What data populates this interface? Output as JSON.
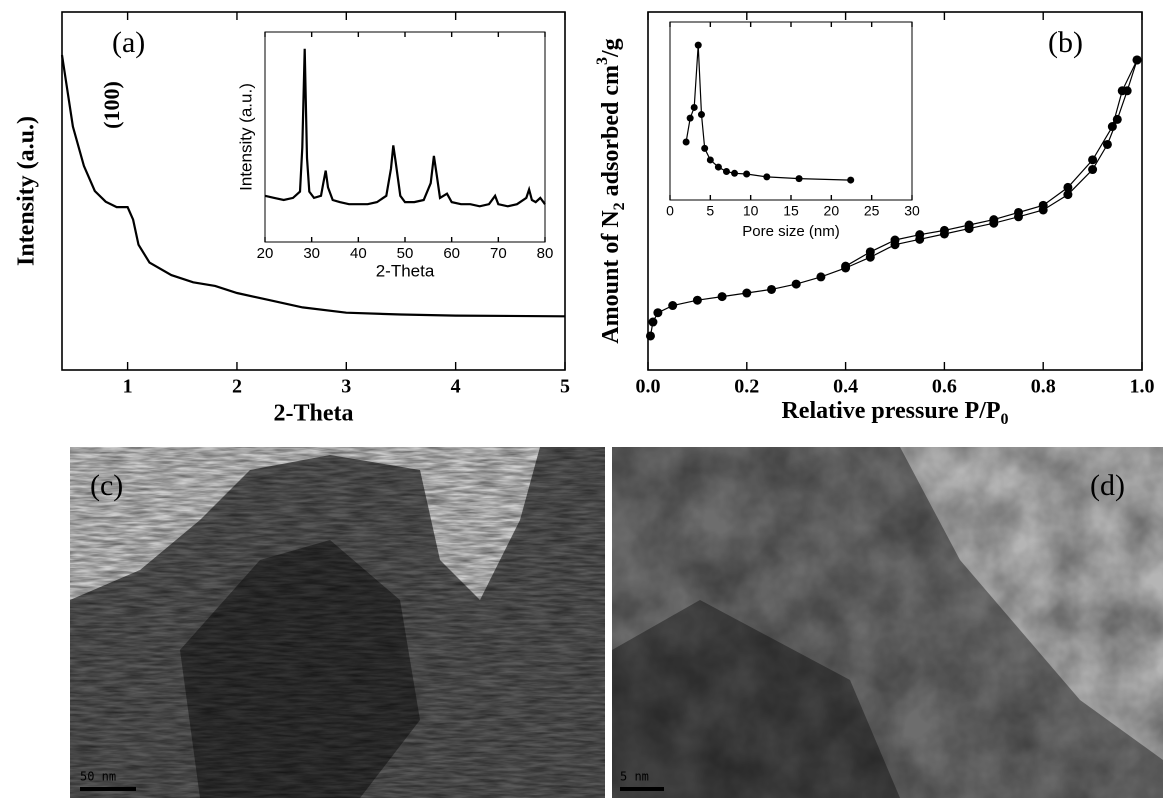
{
  "chart_data": [
    {
      "type": "line",
      "label": "(a)",
      "annotation": "(100)",
      "xlabel": "2-Theta",
      "ylabel": "Intensity (a.u.)",
      "xlim": [
        0.4,
        5
      ],
      "xticks": [
        1,
        2,
        3,
        4,
        5
      ],
      "ylim": [
        0,
        100
      ],
      "x": [
        0.4,
        0.5,
        0.6,
        0.7,
        0.8,
        0.9,
        1.0,
        1.05,
        1.1,
        1.2,
        1.4,
        1.6,
        1.8,
        2.0,
        2.3,
        2.6,
        3.0,
        3.5,
        4.0,
        5.0
      ],
      "series": [
        {
          "color": "#000000",
          "values": [
            88,
            68,
            57,
            50,
            47,
            45.5,
            45.5,
            42,
            35,
            30,
            26.5,
            24.5,
            23.5,
            21.5,
            19.5,
            17.5,
            16,
            15.5,
            15.2,
            15
          ]
        }
      ]
    },
    {
      "type": "line",
      "xlabel": "2-Theta",
      "ylabel": "Intensity (a.u.)",
      "xlim": [
        20,
        80
      ],
      "xticks": [
        20,
        30,
        40,
        50,
        60,
        70,
        80
      ],
      "ylim": [
        0,
        100
      ],
      "x": [
        20,
        22,
        24,
        26,
        27.5,
        28,
        28.5,
        29,
        29.5,
        30.5,
        32,
        32.5,
        33,
        33.5,
        34.5,
        36,
        38,
        40,
        42,
        44,
        46,
        47,
        47.5,
        48,
        49,
        50,
        52,
        54,
        55.5,
        56.2,
        56.8,
        57.5,
        59,
        60,
        62,
        64,
        66,
        68,
        69.3,
        70,
        72,
        74,
        76,
        76.6,
        77.2,
        78,
        79,
        80
      ],
      "series": [
        {
          "color": "#000000",
          "values": [
            22,
            21,
            20,
            21,
            24,
            45,
            92,
            40,
            24,
            21,
            22,
            28,
            34,
            26,
            20,
            19,
            18,
            18,
            18,
            19,
            22,
            35,
            46,
            38,
            22,
            19,
            19,
            20,
            28,
            41,
            32,
            21,
            23,
            19,
            18,
            18,
            17,
            18,
            22,
            18,
            17,
            18,
            21,
            25,
            20,
            19,
            21,
            18
          ]
        }
      ]
    },
    {
      "type": "line",
      "label": "(b)",
      "xlabel": [
        "Relative pressure P/P",
        "0"
      ],
      "ylabel": [
        "Amount of N",
        "2",
        " adsorbed cm",
        "3",
        "/g"
      ],
      "xlim": [
        0,
        1
      ],
      "xticks": [
        {
          "value": 0,
          "label": "0.0"
        },
        0.2,
        0.4,
        0.6,
        0.8,
        {
          "value": 1,
          "label": "1.0"
        }
      ],
      "ylim": [
        0,
        100
      ],
      "series": [
        {
          "color": "#000000",
          "marker": "circle",
          "x": [
            0.005,
            0.01,
            0.02,
            0.05,
            0.1,
            0.15,
            0.2,
            0.25,
            0.3,
            0.35,
            0.4,
            0.45,
            0.5,
            0.55,
            0.6,
            0.65,
            0.7,
            0.75,
            0.8,
            0.85,
            0.9,
            0.93,
            0.95,
            0.97,
            0.99
          ],
          "values": [
            9.5,
            13.4,
            16,
            18,
            19.5,
            20.5,
            21.5,
            22.5,
            24,
            26,
            28.5,
            31.5,
            35,
            36.5,
            38,
            39.5,
            41,
            42.8,
            44.7,
            49,
            56,
            63,
            70,
            78,
            86.6
          ]
        },
        {
          "color": "#000000",
          "marker": "circle",
          "x": [
            0.99,
            0.96,
            0.94,
            0.9,
            0.85,
            0.8,
            0.75,
            0.7,
            0.65,
            0.6,
            0.55,
            0.5,
            0.45,
            0.4
          ],
          "values": [
            86.6,
            78,
            68,
            58.7,
            51,
            46,
            44,
            42,
            40.5,
            39,
            37.8,
            36.3,
            33,
            29
          ]
        }
      ]
    },
    {
      "type": "line",
      "xlabel": "Pore size (nm)",
      "xlim": [
        0,
        30
      ],
      "xticks": [
        0,
        5,
        10,
        15,
        20,
        25,
        30
      ],
      "ylim": [
        0,
        100
      ],
      "x": [
        2,
        2.5,
        3,
        3.5,
        3.9,
        4.3,
        5,
        6,
        7,
        8,
        9.5,
        12,
        16,
        22.4
      ],
      "series": [
        {
          "color": "#000000",
          "marker": "circle",
          "values": [
            32.6,
            46,
            52,
            87,
            48,
            29,
            22.5,
            18.5,
            16,
            15,
            14.6,
            13,
            12,
            11.2
          ]
        }
      ]
    }
  ],
  "images": [
    {
      "label": "(c)",
      "scale_bar": "50 nm"
    },
    {
      "label": "(d)",
      "scale_bar": "5 nm"
    }
  ]
}
